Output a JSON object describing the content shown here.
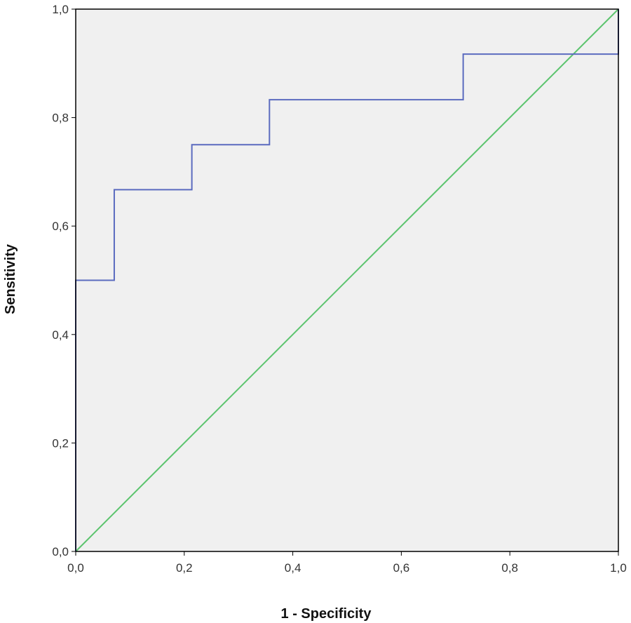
{
  "chart_data": {
    "type": "line",
    "xlabel": "1 - Specificity",
    "ylabel": "Sensitivity",
    "xlim": [
      0,
      1
    ],
    "ylim": [
      0,
      1
    ],
    "x_ticks": [
      "0,0",
      "0,2",
      "0,4",
      "0,6",
      "0,8",
      "1,0"
    ],
    "y_ticks": [
      "0,0",
      "0,2",
      "0,4",
      "0,6",
      "0,8",
      "1,0"
    ],
    "grid": false,
    "legend": "none",
    "background_color": "#f0f0f0",
    "series": [
      {
        "kind": "step",
        "color": "#5b6bbf",
        "points": [
          [
            0.0,
            0.0
          ],
          [
            0.0,
            0.5
          ],
          [
            0.071,
            0.5
          ],
          [
            0.071,
            0.667
          ],
          [
            0.214,
            0.667
          ],
          [
            0.214,
            0.75
          ],
          [
            0.357,
            0.75
          ],
          [
            0.357,
            0.833
          ],
          [
            0.714,
            0.833
          ],
          [
            0.714,
            0.917
          ],
          [
            1.0,
            0.917
          ],
          [
            1.0,
            1.0
          ]
        ]
      },
      {
        "kind": "reference",
        "color": "#5cc46e",
        "points": [
          [
            0.0,
            0.0
          ],
          [
            1.0,
            1.0
          ]
        ]
      }
    ]
  }
}
